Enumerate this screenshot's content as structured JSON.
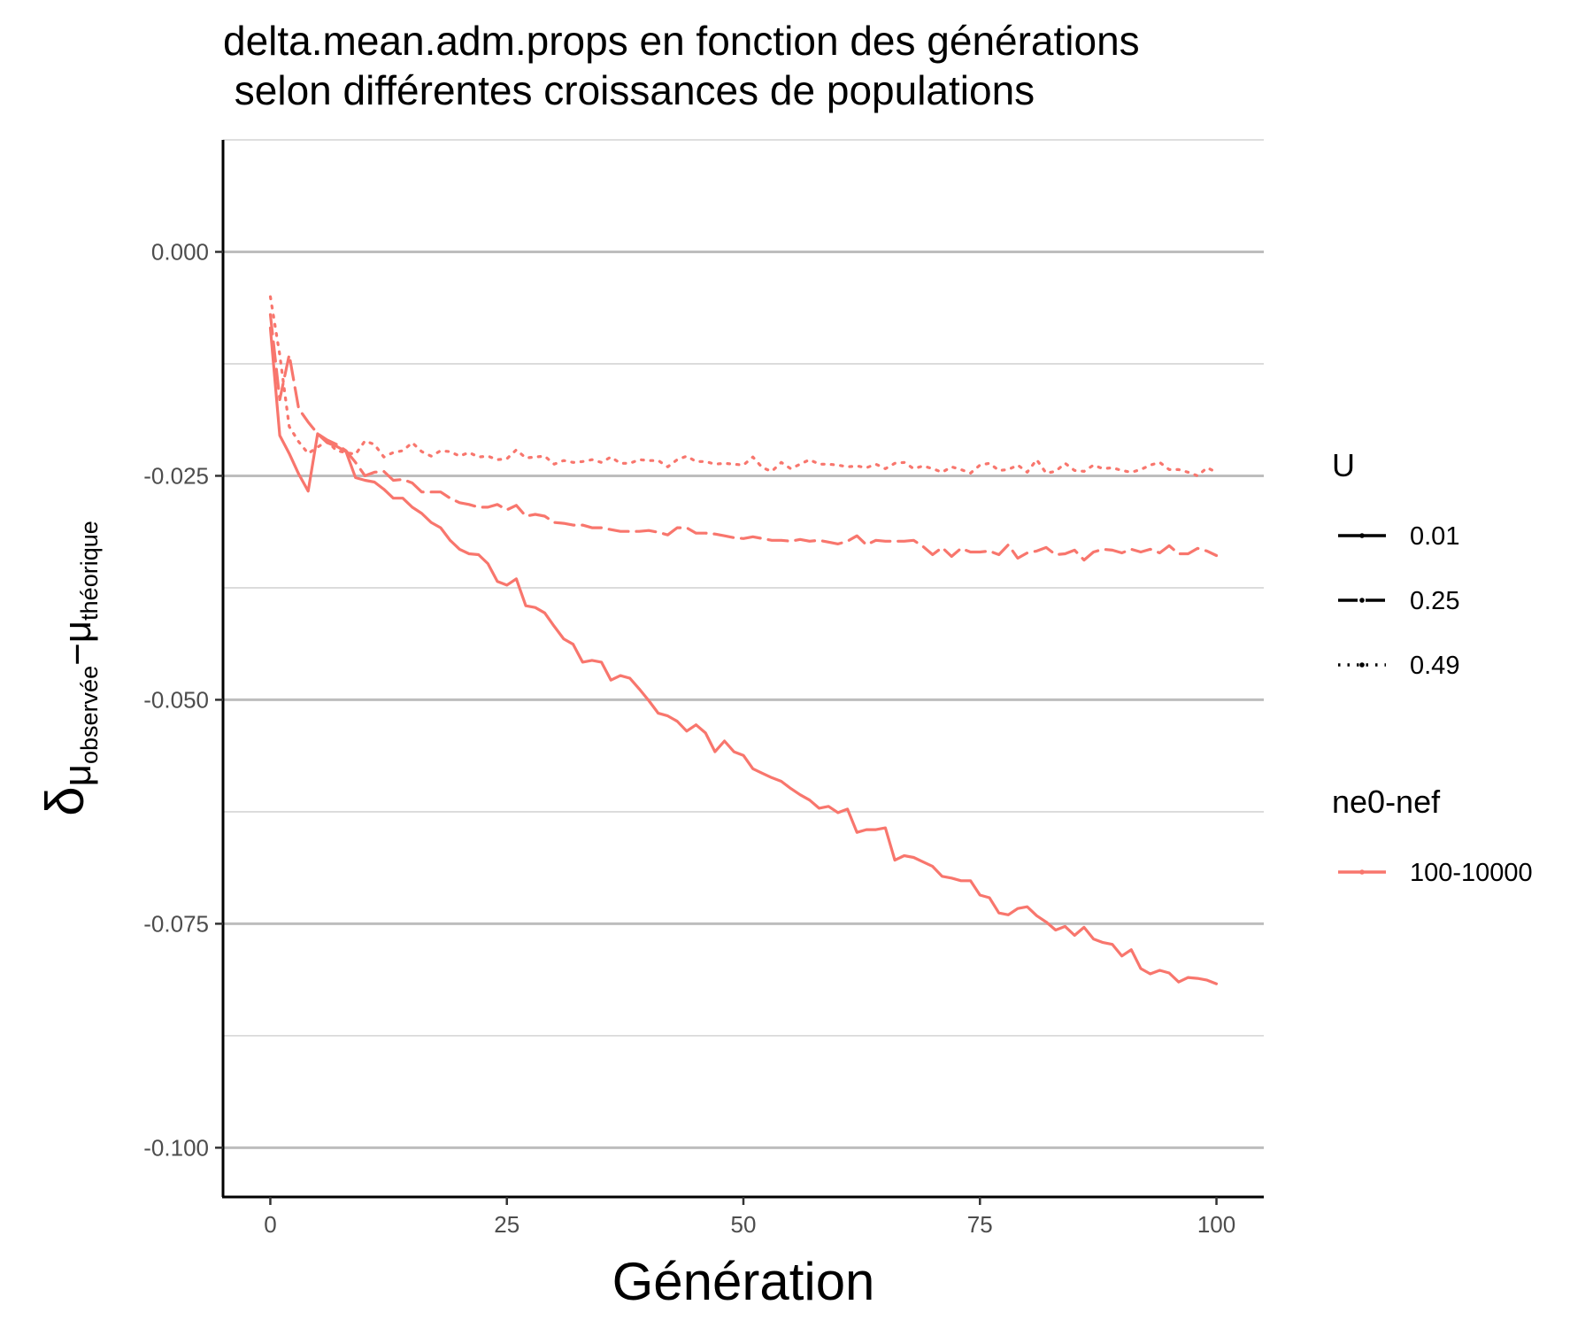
{
  "chart_data": {
    "type": "line",
    "title_lines": [
      "delta.mean.adm.props en fonction des générations",
      " selon différentes croissances de populations"
    ],
    "xlabel": "Génération",
    "ylabel": {
      "symbol": "δ",
      "sub_parts": [
        "μ",
        "observée",
        "−",
        "μ",
        "théorique"
      ]
    },
    "xlim": [
      -5,
      105
    ],
    "ylim": [
      -0.1055,
      0.0125
    ],
    "x_ticks": [
      0,
      25,
      50,
      75,
      100
    ],
    "x_tick_labels": [
      "0",
      "25",
      "50",
      "75",
      "100"
    ],
    "y_ticks": [
      0,
      -0.025,
      -0.05,
      -0.075,
      -0.1
    ],
    "y_tick_labels": [
      "0.000",
      "-0.025",
      "-0.050",
      "-0.075",
      "-0.100"
    ],
    "y_minor_ticks": [
      0.0125,
      -0.0125,
      -0.0375,
      -0.0625,
      -0.0875
    ],
    "grid": "horizontal",
    "color": "#F8766D",
    "legend_position": "right",
    "legends": [
      {
        "title": "U",
        "entries": [
          {
            "label": "0.01",
            "linetype": "solid"
          },
          {
            "label": "0.25",
            "linetype": "dashed"
          },
          {
            "label": "0.49",
            "linetype": "dotted"
          }
        ]
      },
      {
        "title": "ne0-nef",
        "entries": [
          {
            "label": "100-10000",
            "linetype": "solid"
          }
        ]
      }
    ],
    "series": [
      {
        "name": "0.01",
        "linetype": "solid",
        "x": [
          0,
          1,
          2,
          3,
          4,
          5,
          6,
          7,
          8,
          9,
          10,
          11,
          12,
          13,
          14,
          15,
          16,
          17,
          18,
          19,
          20,
          21,
          22,
          23,
          24,
          25,
          26,
          27,
          28,
          29,
          30,
          31,
          32,
          33,
          34,
          35,
          36,
          37,
          38,
          39,
          40,
          41,
          42,
          43,
          44,
          45,
          46,
          47,
          48,
          49,
          50,
          51,
          52,
          53,
          54,
          55,
          56,
          57,
          58,
          59,
          60,
          61,
          62,
          63,
          64,
          65,
          66,
          67,
          68,
          69,
          70,
          71,
          72,
          73,
          74,
          75,
          76,
          77,
          78,
          79,
          80,
          81,
          82,
          83,
          84,
          85,
          86,
          87,
          88,
          89,
          90,
          91,
          92,
          93,
          94,
          95,
          96,
          97,
          98,
          99,
          100
        ],
        "y": [
          -0.0085,
          -0.0205,
          -0.0225,
          -0.0248,
          -0.0267,
          -0.0203,
          -0.0213,
          -0.0217,
          -0.0223,
          -0.0252,
          -0.0255,
          -0.0257,
          -0.0265,
          -0.0275,
          -0.0275,
          -0.0285,
          -0.0292,
          -0.0302,
          -0.0308,
          -0.0322,
          -0.0332,
          -0.0337,
          -0.0338,
          -0.0348,
          -0.0368,
          -0.0372,
          -0.0365,
          -0.0395,
          -0.0397,
          -0.0403,
          -0.0418,
          -0.0432,
          -0.0438,
          -0.0458,
          -0.0456,
          -0.0458,
          -0.0478,
          -0.0473,
          -0.0476,
          -0.0488,
          -0.0501,
          -0.0515,
          -0.0518,
          -0.0524,
          -0.0535,
          -0.0528,
          -0.0537,
          -0.0558,
          -0.0546,
          -0.0558,
          -0.0562,
          -0.0577,
          -0.0582,
          -0.0587,
          -0.0591,
          -0.0599,
          -0.0606,
          -0.0612,
          -0.0621,
          -0.0619,
          -0.0626,
          -0.0622,
          -0.0648,
          -0.0645,
          -0.0645,
          -0.0643,
          -0.0679,
          -0.0674,
          -0.0676,
          -0.0681,
          -0.0686,
          -0.0697,
          -0.0699,
          -0.0702,
          -0.0702,
          -0.0718,
          -0.0721,
          -0.0738,
          -0.074,
          -0.0733,
          -0.0731,
          -0.0741,
          -0.0748,
          -0.0757,
          -0.0753,
          -0.0763,
          -0.0754,
          -0.0767,
          -0.0771,
          -0.0773,
          -0.0786,
          -0.0779,
          -0.08,
          -0.0806,
          -0.0802,
          -0.0805,
          -0.0815,
          -0.081,
          -0.0811,
          -0.0813,
          -0.0817
        ]
      },
      {
        "name": "0.25",
        "linetype": "dashed",
        "x": [
          0,
          1,
          2,
          3,
          4,
          5,
          6,
          7,
          8,
          9,
          10,
          11,
          12,
          13,
          14,
          15,
          16,
          17,
          18,
          19,
          20,
          21,
          22,
          23,
          24,
          25,
          26,
          27,
          28,
          29,
          30,
          31,
          32,
          33,
          34,
          35,
          36,
          37,
          38,
          39,
          40,
          41,
          42,
          43,
          44,
          45,
          46,
          47,
          48,
          49,
          50,
          51,
          52,
          53,
          54,
          55,
          56,
          57,
          58,
          59,
          60,
          61,
          62,
          63,
          64,
          65,
          66,
          67,
          68,
          69,
          70,
          71,
          72,
          73,
          74,
          75,
          76,
          77,
          78,
          79,
          80,
          81,
          82,
          83,
          84,
          85,
          86,
          87,
          88,
          89,
          90,
          91,
          92,
          93,
          94,
          95,
          96,
          97,
          98,
          99,
          100
        ],
        "y": [
          -0.007,
          -0.0165,
          -0.0115,
          -0.0175,
          -0.019,
          -0.0203,
          -0.021,
          -0.0215,
          -0.0222,
          -0.0235,
          -0.025,
          -0.0246,
          -0.0245,
          -0.0255,
          -0.0254,
          -0.0258,
          -0.0268,
          -0.0268,
          -0.0268,
          -0.0275,
          -0.028,
          -0.0282,
          -0.0285,
          -0.0285,
          -0.0282,
          -0.0288,
          -0.0283,
          -0.0295,
          -0.0293,
          -0.0295,
          -0.0302,
          -0.0303,
          -0.0305,
          -0.0305,
          -0.0308,
          -0.0308,
          -0.031,
          -0.0312,
          -0.0312,
          -0.0312,
          -0.0311,
          -0.0313,
          -0.0316,
          -0.0308,
          -0.0308,
          -0.0314,
          -0.0314,
          -0.0315,
          -0.0317,
          -0.0319,
          -0.032,
          -0.0318,
          -0.032,
          -0.0322,
          -0.0322,
          -0.0323,
          -0.0321,
          -0.0323,
          -0.0322,
          -0.0324,
          -0.0326,
          -0.0323,
          -0.0317,
          -0.0327,
          -0.0322,
          -0.0323,
          -0.0323,
          -0.0323,
          -0.0322,
          -0.0329,
          -0.0338,
          -0.033,
          -0.034,
          -0.0331,
          -0.0335,
          -0.0335,
          -0.0334,
          -0.0338,
          -0.0327,
          -0.0342,
          -0.0336,
          -0.0334,
          -0.033,
          -0.0338,
          -0.0337,
          -0.0333,
          -0.0344,
          -0.0335,
          -0.0332,
          -0.0333,
          -0.0336,
          -0.0332,
          -0.0335,
          -0.0332,
          -0.0336,
          -0.0328,
          -0.0337,
          -0.0337,
          -0.0331,
          -0.0334,
          -0.0339
        ]
      },
      {
        "name": "0.49",
        "linetype": "dotted",
        "x": [
          0,
          1,
          2,
          3,
          4,
          5,
          6,
          7,
          8,
          9,
          10,
          11,
          12,
          13,
          14,
          15,
          16,
          17,
          18,
          19,
          20,
          21,
          22,
          23,
          24,
          25,
          26,
          27,
          28,
          29,
          30,
          31,
          32,
          33,
          34,
          35,
          36,
          37,
          38,
          39,
          40,
          41,
          42,
          43,
          44,
          45,
          46,
          47,
          48,
          49,
          50,
          51,
          52,
          53,
          54,
          55,
          56,
          57,
          58,
          59,
          60,
          61,
          62,
          63,
          64,
          65,
          66,
          67,
          68,
          69,
          70,
          71,
          72,
          73,
          74,
          75,
          76,
          77,
          78,
          79,
          80,
          81,
          82,
          83,
          84,
          85,
          86,
          87,
          88,
          89,
          90,
          91,
          92,
          93,
          94,
          95,
          96,
          97,
          98,
          99,
          100
        ],
        "y": [
          -0.005,
          -0.0115,
          -0.0195,
          -0.0212,
          -0.0225,
          -0.0218,
          -0.0211,
          -0.0222,
          -0.0224,
          -0.0226,
          -0.0211,
          -0.0215,
          -0.0229,
          -0.0224,
          -0.0222,
          -0.0213,
          -0.0223,
          -0.0228,
          -0.0222,
          -0.0223,
          -0.0228,
          -0.0224,
          -0.0229,
          -0.0228,
          -0.0232,
          -0.0231,
          -0.0221,
          -0.023,
          -0.0229,
          -0.0228,
          -0.0237,
          -0.0233,
          -0.0235,
          -0.0234,
          -0.0232,
          -0.0235,
          -0.0229,
          -0.0236,
          -0.0236,
          -0.0232,
          -0.0233,
          -0.0233,
          -0.024,
          -0.0232,
          -0.0228,
          -0.0234,
          -0.0234,
          -0.0237,
          -0.0236,
          -0.0237,
          -0.0238,
          -0.0229,
          -0.0241,
          -0.0245,
          -0.0235,
          -0.0242,
          -0.0237,
          -0.0232,
          -0.0237,
          -0.0237,
          -0.0238,
          -0.024,
          -0.0239,
          -0.0241,
          -0.0237,
          -0.0242,
          -0.0236,
          -0.0235,
          -0.0242,
          -0.0239,
          -0.0242,
          -0.0246,
          -0.024,
          -0.0243,
          -0.0247,
          -0.0238,
          -0.0236,
          -0.0244,
          -0.0243,
          -0.0238,
          -0.0246,
          -0.0232,
          -0.0247,
          -0.0245,
          -0.0236,
          -0.0244,
          -0.0245,
          -0.0238,
          -0.0242,
          -0.0241,
          -0.0244,
          -0.0246,
          -0.0243,
          -0.0238,
          -0.0235,
          -0.0243,
          -0.0243,
          -0.0246,
          -0.025,
          -0.0241,
          -0.0246
        ]
      }
    ]
  }
}
